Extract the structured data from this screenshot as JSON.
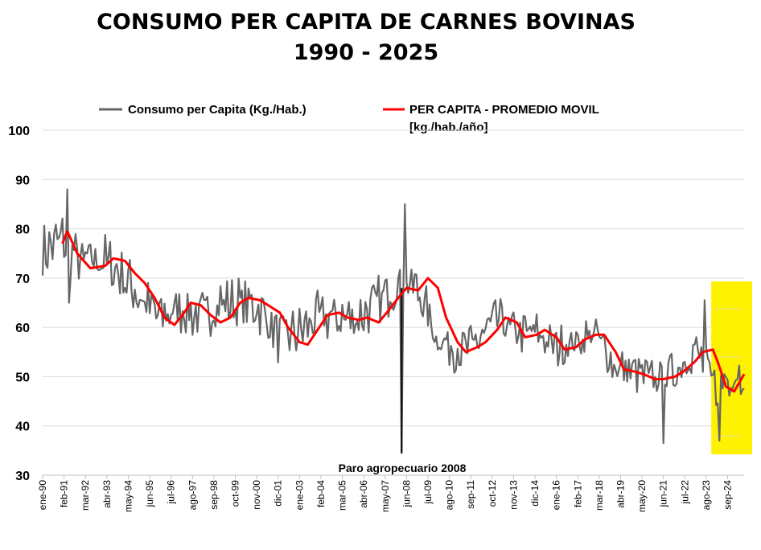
{
  "chart_data": {
    "type": "line",
    "title_line1": "CONSUMO PER CAPITA DE CARNES BOVINAS",
    "title_line2": "1990 - 2025",
    "legend": {
      "placement": "top-center",
      "series1": "Consumo per Capita (Kg./Hab.)",
      "series2_line1": "PER CAPITA - PROMEDIO MOVIL",
      "series2_line2": "[kg./hab./año]"
    },
    "ylim": [
      30,
      100
    ],
    "yticks": [
      "30",
      "40",
      "50",
      "60",
      "70",
      "80",
      "90",
      "100"
    ],
    "grid": true,
    "x_start": "1990-01",
    "x_end": "2025-07",
    "xtick_labels": [
      "ene-90",
      "feb-91",
      "mar-92",
      "abr-93",
      "may-94",
      "jun-95",
      "jul-96",
      "ago-97",
      "sep-98",
      "oct-99",
      "nov-00",
      "dic-01",
      "ene-03",
      "feb-04",
      "mar-05",
      "abr-06",
      "may-07",
      "jun-08",
      "jul-09",
      "ago-10",
      "sep-11",
      "oct-12",
      "nov-13",
      "dic-14",
      "ene-16",
      "feb-17",
      "mar-18",
      "abr-19",
      "may-20",
      "jun-21",
      "jul-22",
      "ago-23",
      "sep-24"
    ],
    "annotation": "Paro agropecuario 2008",
    "highlight": {
      "from": "2024-01",
      "to": "2025-07",
      "color": "#FFF200"
    },
    "series": [
      {
        "name": "Consumo per Capita (Kg./Hab.)",
        "color": "#666666",
        "annual_anchor_years": [
          1990,
          1991,
          1992,
          1993,
          1994,
          1995,
          1996,
          1997,
          1998,
          1999,
          2000,
          2001,
          2002,
          2003,
          2004,
          2005,
          2006,
          2007,
          2008,
          2009,
          2010,
          2011,
          2012,
          2013,
          2014,
          2015,
          2016,
          2017,
          2018,
          2019,
          2020,
          2021,
          2022,
          2023,
          2024,
          2025
        ],
        "annual_anchor_values": [
          75,
          78,
          73,
          74,
          71,
          66,
          62,
          64,
          62,
          65,
          65,
          64,
          58,
          59,
          62,
          62,
          62,
          65,
          69,
          68,
          58,
          55,
          57,
          62,
          59,
          59,
          56,
          57,
          59,
          52,
          51,
          49.5,
          51,
          56,
          48,
          51
        ],
        "extremes": [
          {
            "date": "1991-04",
            "value": 88
          },
          {
            "date": "1991-05",
            "value": 65
          },
          {
            "date": "2008-03",
            "value": 34.5
          },
          {
            "date": "2008-05",
            "value": 85
          },
          {
            "date": "2021-06",
            "value": 36.5
          },
          {
            "date": "2023-07",
            "value": 65.5
          },
          {
            "date": "2024-04",
            "value": 37
          }
        ]
      },
      {
        "name": "PER CAPITA - PROMEDIO MOVIL",
        "color": "#FF0000",
        "points": [
          [
            "1991-01",
            77
          ],
          [
            "1991-04",
            79.5
          ],
          [
            "1991-10",
            75
          ],
          [
            "1992-06",
            72
          ],
          [
            "1993-03",
            72.5
          ],
          [
            "1993-08",
            74
          ],
          [
            "1994-03",
            73.5
          ],
          [
            "1994-09",
            71
          ],
          [
            "1995-03",
            69
          ],
          [
            "1995-09",
            66
          ],
          [
            "1996-03",
            62
          ],
          [
            "1996-09",
            60.5
          ],
          [
            "1997-03",
            63
          ],
          [
            "1997-07",
            65
          ],
          [
            "1998-01",
            64.5
          ],
          [
            "1998-07",
            62.5
          ],
          [
            "1999-01",
            61
          ],
          [
            "1999-07",
            62
          ],
          [
            "2000-01",
            65
          ],
          [
            "2000-06",
            66
          ],
          [
            "2001-01",
            65.5
          ],
          [
            "2001-06",
            64.5
          ],
          [
            "2002-01",
            63
          ],
          [
            "2002-06",
            60
          ],
          [
            "2003-01",
            57
          ],
          [
            "2003-06",
            56.5
          ],
          [
            "2004-01",
            60
          ],
          [
            "2004-06",
            62.5
          ],
          [
            "2005-01",
            63
          ],
          [
            "2005-06",
            62
          ],
          [
            "2006-01",
            61.5
          ],
          [
            "2006-06",
            62
          ],
          [
            "2007-01",
            61
          ],
          [
            "2007-06",
            63
          ],
          [
            "2008-01",
            66
          ],
          [
            "2008-06",
            68
          ],
          [
            "2009-01",
            67.5
          ],
          [
            "2009-07",
            70
          ],
          [
            "2010-01",
            68
          ],
          [
            "2010-06",
            62
          ],
          [
            "2011-01",
            57
          ],
          [
            "2011-06",
            55
          ],
          [
            "2012-01",
            56
          ],
          [
            "2012-06",
            57
          ],
          [
            "2013-01",
            59.5
          ],
          [
            "2013-06",
            62
          ],
          [
            "2014-01",
            61
          ],
          [
            "2014-06",
            58
          ],
          [
            "2015-01",
            58.5
          ],
          [
            "2015-06",
            59.5
          ],
          [
            "2016-01",
            58
          ],
          [
            "2016-06",
            55.5
          ],
          [
            "2017-01",
            56
          ],
          [
            "2017-06",
            57.5
          ],
          [
            "2018-01",
            58.5
          ],
          [
            "2018-06",
            58.5
          ],
          [
            "2019-01",
            55
          ],
          [
            "2019-06",
            51.5
          ],
          [
            "2020-01",
            51
          ],
          [
            "2020-06",
            50.5
          ],
          [
            "2021-01",
            49.5
          ],
          [
            "2021-06",
            49.5
          ],
          [
            "2022-01",
            50
          ],
          [
            "2022-06",
            51
          ],
          [
            "2023-01",
            53
          ],
          [
            "2023-06",
            55
          ],
          [
            "2023-12",
            55.5
          ],
          [
            "2024-03",
            53
          ],
          [
            "2024-08",
            48
          ],
          [
            "2025-01",
            47
          ],
          [
            "2025-07",
            50.5
          ]
        ]
      }
    ]
  }
}
